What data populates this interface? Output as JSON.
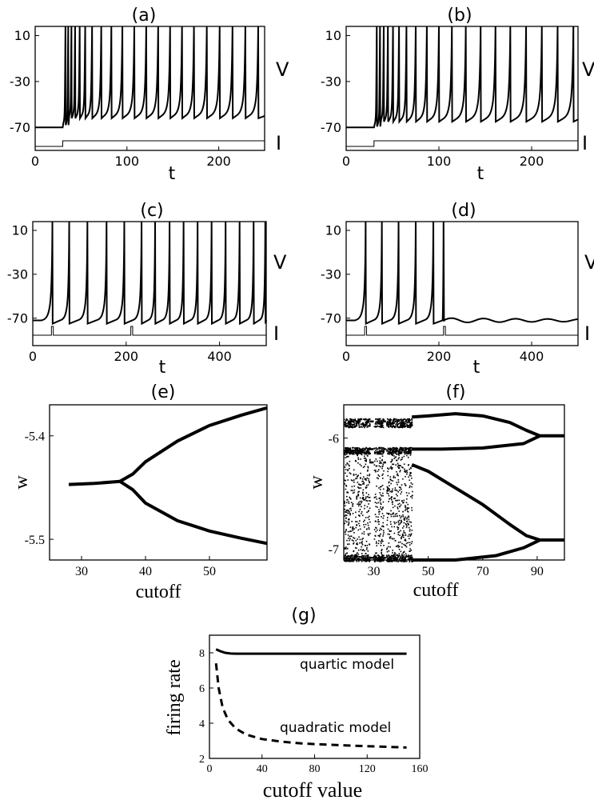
{
  "chart_data": [
    {
      "panel": "(a)",
      "type": "line",
      "title": "(a)",
      "xlabel": "t",
      "ylabel": "",
      "voltage_label": "V",
      "current_label": "I",
      "xlim": [
        0,
        250
      ],
      "ylim": [
        -90,
        18
      ],
      "xticks": [
        "0",
        "100",
        "200"
      ],
      "yticks": [
        "10",
        "-30",
        "-70"
      ],
      "rest_level": -70,
      "current_onset": 30,
      "spike_times": [
        33,
        36,
        39.5,
        43.5,
        48.5,
        54.5,
        62,
        72,
        83,
        95,
        108,
        121,
        134,
        147,
        160,
        173,
        187,
        201,
        215,
        229,
        243
      ],
      "trough_level": -60,
      "spike_top": 18
    },
    {
      "panel": "(b)",
      "type": "line",
      "title": "(b)",
      "xlabel": "t",
      "ylabel": "",
      "voltage_label": "V",
      "current_label": "I",
      "xlim": [
        0,
        250
      ],
      "ylim": [
        -90,
        18
      ],
      "xticks": [
        "0",
        "100",
        "200"
      ],
      "yticks": [
        "10",
        "-30",
        "-70"
      ],
      "rest_level": -70,
      "current_onset": 30,
      "spike_times": [
        33,
        36.5,
        40.5,
        45,
        50.5,
        57,
        65,
        75,
        87,
        100,
        114,
        129,
        145,
        161,
        177,
        194,
        211,
        228,
        245
      ],
      "trough_level": -63,
      "spike_top": 18
    },
    {
      "panel": "(c)",
      "type": "line",
      "title": "(c)",
      "xlabel": "t",
      "ylabel": "",
      "voltage_label": "V",
      "current_label": "I",
      "xlim": [
        0,
        500
      ],
      "ylim": [
        -95,
        18
      ],
      "xticks": [
        "0",
        "200",
        "400"
      ],
      "yticks": [
        "10",
        "-30",
        "-70"
      ],
      "rest_level": -72,
      "pulse_times": [
        40,
        210
      ],
      "spike_times": [
        42,
        78,
        117,
        158,
        196,
        233,
        262,
        293,
        323,
        353,
        383,
        413,
        443,
        473,
        498
      ],
      "stops_after": null,
      "spike_top": 18
    },
    {
      "panel": "(d)",
      "type": "line",
      "title": "(d)",
      "xlabel": "t",
      "ylabel": "",
      "voltage_label": "V",
      "current_label": "I",
      "xlim": [
        0,
        500
      ],
      "ylim": [
        -95,
        18
      ],
      "xticks": [
        "0",
        "200",
        "400"
      ],
      "yticks": [
        "10",
        "-30",
        "-70"
      ],
      "rest_level": -72,
      "pulse_times": [
        40,
        210
      ],
      "spike_times": [
        42,
        77,
        113,
        150,
        188
      ],
      "stops_after": 210,
      "spike_top": 18
    },
    {
      "panel": "(e)",
      "type": "scatter",
      "title": "(e)",
      "xlabel": "cutoff",
      "ylabel": "w",
      "xlim": [
        25,
        59
      ],
      "ylim": [
        -5.52,
        -5.37
      ],
      "xticks": [
        "30",
        "40",
        "50"
      ],
      "yticks": [
        "-5.4",
        "-5.5"
      ],
      "branches": {
        "stem": [
          [
            28,
            -5.447
          ],
          [
            32,
            -5.446
          ],
          [
            36,
            -5.444
          ]
        ],
        "upper": [
          [
            36,
            -5.444
          ],
          [
            38,
            -5.437
          ],
          [
            40,
            -5.425
          ],
          [
            45,
            -5.405
          ],
          [
            50,
            -5.39
          ],
          [
            55,
            -5.38
          ],
          [
            59,
            -5.373
          ]
        ],
        "lower": [
          [
            36,
            -5.444
          ],
          [
            38,
            -5.452
          ],
          [
            40,
            -5.465
          ],
          [
            45,
            -5.482
          ],
          [
            50,
            -5.492
          ],
          [
            55,
            -5.499
          ],
          [
            59,
            -5.504
          ]
        ]
      }
    },
    {
      "panel": "(f)",
      "type": "scatter",
      "title": "(f)",
      "xlabel": "cutoff",
      "ylabel": "w",
      "xlim": [
        19,
        100
      ],
      "ylim": [
        -7.1,
        -5.7
      ],
      "xticks": [
        "30",
        "50",
        "70",
        "90"
      ],
      "yticks": [
        "-6",
        "-7"
      ],
      "chaotic_range": [
        19,
        44
      ],
      "windows": [
        [
          28.5,
          30
        ],
        [
          33.5,
          34.5
        ]
      ],
      "branches": {
        "upper_top": [
          [
            44,
            -5.81
          ],
          [
            50,
            -5.8
          ],
          [
            60,
            -5.78
          ],
          [
            70,
            -5.8
          ],
          [
            80,
            -5.86
          ],
          [
            86,
            -5.93
          ],
          [
            91,
            -5.98
          ]
        ],
        "upper_bottom": [
          [
            44,
            -6.1
          ],
          [
            55,
            -6.1
          ],
          [
            70,
            -6.09
          ],
          [
            85,
            -6.05
          ],
          [
            91,
            -5.98
          ]
        ],
        "upper_merged": [
          [
            91,
            -5.98
          ],
          [
            100,
            -5.98
          ]
        ],
        "lower_top": [
          [
            44,
            -6.24
          ],
          [
            50,
            -6.3
          ],
          [
            60,
            -6.45
          ],
          [
            70,
            -6.6
          ],
          [
            80,
            -6.78
          ],
          [
            86,
            -6.88
          ],
          [
            91,
            -6.92
          ]
        ],
        "lower_bottom": [
          [
            44,
            -7.1
          ],
          [
            60,
            -7.1
          ],
          [
            75,
            -7.06
          ],
          [
            85,
            -6.99
          ],
          [
            91,
            -6.92
          ]
        ],
        "lower_merged": [
          [
            91,
            -6.92
          ],
          [
            100,
            -6.92
          ]
        ]
      }
    },
    {
      "panel": "(g)",
      "type": "line",
      "title": "(g)",
      "xlabel": "cutoff value",
      "ylabel": "firing rate",
      "xlim": [
        0,
        160
      ],
      "ylim": [
        2,
        9
      ],
      "xticks": [
        "0",
        "40",
        "80",
        "120",
        "160"
      ],
      "yticks": [
        "2",
        "4",
        "6",
        "8"
      ],
      "series": [
        {
          "name": "quartic model",
          "style": "solid",
          "x": [
            5,
            8,
            12,
            16,
            20,
            25,
            30,
            40,
            60,
            80,
            100,
            120,
            150
          ],
          "y": [
            8.2,
            8.1,
            8.0,
            7.96,
            7.95,
            7.95,
            7.95,
            7.95,
            7.95,
            7.95,
            7.95,
            7.95,
            7.95
          ]
        },
        {
          "name": "quadratic model",
          "style": "dashed",
          "x": [
            5,
            7,
            10,
            14,
            20,
            28,
            40,
            55,
            70,
            90,
            110,
            130,
            150
          ],
          "y": [
            7.4,
            6.0,
            4.9,
            4.2,
            3.7,
            3.35,
            3.1,
            2.95,
            2.85,
            2.78,
            2.72,
            2.67,
            2.62
          ]
        }
      ]
    }
  ]
}
